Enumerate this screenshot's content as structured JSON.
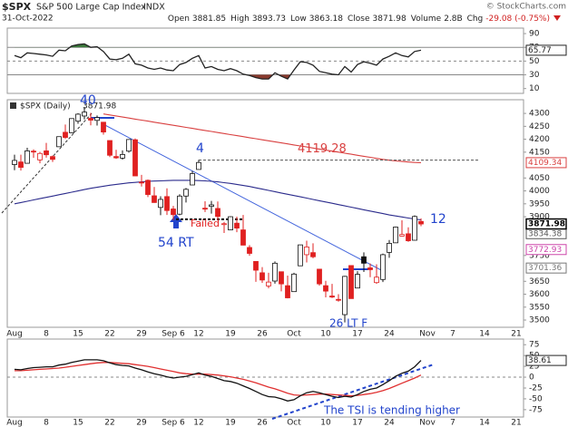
{
  "header": {
    "symbol": "$SPX",
    "name": "S&P 500 Large Cap Index",
    "exchange": "INDX",
    "date": "31-Oct-2022",
    "copyright": "© StockCharts.com",
    "stats": [
      {
        "label": "Open",
        "value": 3881.85
      },
      {
        "label": "High",
        "value": 3893.73
      },
      {
        "label": "Low",
        "value": 3863.18
      },
      {
        "label": "Close",
        "value": 3871.98
      },
      {
        "label": "Volume",
        "value": "2.8B"
      },
      {
        "label": "Chg",
        "value": "-29.08 (-0.75%)"
      }
    ]
  },
  "chart_data": [
    {
      "type": "line",
      "ylim": [
        3,
        98
      ],
      "yticks": [
        90,
        70,
        50,
        30,
        10
      ],
      "reference_lines": [
        {
          "value": 70,
          "style": "solid"
        },
        {
          "value": 50,
          "style": "dashed"
        },
        {
          "value": 30,
          "style": "solid"
        }
      ],
      "overbought": 70,
      "oversold": 30,
      "overbought_color": "#3d7a3d",
      "oversold_color": "#8a3b2e",
      "series": [
        {
          "color": "#222222",
          "values": [
            58,
            55,
            62,
            61,
            60,
            59,
            57,
            66,
            65,
            72,
            74,
            75,
            70,
            71,
            64,
            53,
            52,
            54,
            60,
            46,
            44,
            40,
            38,
            40,
            37,
            36,
            45,
            48,
            54,
            58,
            40,
            42,
            38,
            36,
            39,
            36,
            31,
            29,
            26,
            24,
            24,
            33,
            28,
            24,
            37,
            49,
            48,
            44,
            35,
            33,
            31,
            30,
            42,
            34,
            45,
            49,
            47,
            44,
            53,
            57,
            62,
            58,
            56,
            64,
            65.77
          ]
        }
      ]
    },
    {
      "type": "candlestick",
      "legend": "$SPX (Daily)",
      "ylim": [
        3472,
        4353
      ],
      "yticks": [
        4300,
        4250,
        4200,
        4150,
        4050,
        4000,
        3950,
        3900,
        3750,
        3650,
        3600,
        3550,
        3500
      ],
      "categories": [
        "Aug",
        null,
        null,
        null,
        null,
        "8",
        null,
        null,
        null,
        null,
        "15",
        null,
        null,
        null,
        null,
        "22",
        null,
        null,
        null,
        null,
        "29",
        null,
        null,
        null,
        null,
        "Sep 6",
        null,
        null,
        null,
        "12",
        null,
        null,
        null,
        null,
        "19",
        null,
        null,
        null,
        null,
        "26",
        null,
        null,
        null,
        null,
        "Oct",
        null,
        null,
        null,
        null,
        "10",
        null,
        null,
        null,
        null,
        "17",
        null,
        null,
        null,
        null,
        "24",
        null,
        null,
        null,
        null,
        null,
        "Nov",
        null,
        null,
        null,
        "7",
        null,
        null,
        null,
        null,
        "14",
        null,
        null,
        null,
        null,
        "21",
        null
      ],
      "open": [
        4102,
        4112,
        4107,
        4154,
        4120,
        4155,
        4133,
        4171,
        4227,
        4225,
        4270,
        4290,
        4281,
        4273,
        4266,
        4195,
        4133,
        4127,
        4154,
        4198,
        4034,
        4041,
        3981,
        3936,
        3978,
        3930,
        3910,
        3980,
        4023,
        4083,
        3933,
        3940,
        3932,
        3871,
        3849,
        3875,
        3849,
        3781,
        3727,
        3683,
        3632,
        3651,
        3687,
        3633,
        3610,
        3710,
        3753,
        3761,
        3697,
        3633,
        3593,
        3580,
        3521,
        3711,
        3624,
        3745,
        3702,
        3645,
        3657,
        3762,
        3799,
        3825,
        3834,
        3809,
        3881.85,
        null,
        null,
        null,
        null,
        null,
        null,
        null,
        null,
        null,
        null,
        null,
        null,
        null,
        null,
        null,
        null
      ],
      "high": [
        4140,
        4140,
        4167,
        4161,
        4151,
        4186,
        4137,
        4211,
        4257,
        4280,
        4301,
        4325,
        4302,
        4292,
        4266,
        4195,
        4159,
        4157,
        4200,
        4203,
        4062,
        4044,
        4015,
        3979,
        4010,
        3942,
        3987,
        4011,
        4077,
        4120,
        3960,
        3961,
        3959,
        3880,
        3902,
        3900,
        3907,
        3790,
        3727,
        3705,
        3683,
        3727,
        3687,
        3672,
        3683,
        3791,
        3807,
        3797,
        3697,
        3652,
        3640,
        3600,
        3671,
        3712,
        3689,
        3762,
        3719,
        3716,
        3757,
        3810,
        3862,
        3886,
        3859,
        3905,
        3893.73,
        null,
        null,
        null,
        null,
        null,
        null,
        null,
        null,
        null,
        null,
        null,
        null,
        null,
        null,
        null,
        null
      ],
      "low": [
        4080,
        4079,
        4107,
        4128,
        4107,
        4129,
        4112,
        4171,
        4201,
        4225,
        4260,
        4277,
        4254,
        4253,
        4218,
        4131,
        4124,
        4121,
        4148,
        4058,
        4017,
        3976,
        3954,
        3906,
        3907,
        3886,
        3906,
        3955,
        4023,
        4083,
        3918,
        3912,
        3888,
        3837,
        3849,
        3840,
        3789,
        3749,
        3648,
        3644,
        3623,
        3641,
        3611,
        3584,
        3610,
        3710,
        3723,
        3739,
        3633,
        3588,
        3585,
        3571,
        3491,
        3583,
        3624,
        3686,
        3666,
        3640,
        3647,
        3741,
        3799,
        3824,
        3803,
        3808,
        3863.18,
        null,
        null,
        null,
        null,
        null,
        null,
        null,
        null,
        null,
        null,
        null,
        null,
        null,
        null,
        null,
        null
      ],
      "close": [
        4118,
        4091,
        4155,
        4152,
        4145,
        4140,
        4122,
        4210,
        4207,
        4280,
        4297,
        4305,
        4274,
        4284,
        4228,
        4138,
        4128,
        4141,
        4199,
        4058,
        4031,
        3986,
        3955,
        3967,
        3924,
        3908,
        3980,
        4006,
        4067,
        4110,
        3932,
        3946,
        3901,
        3873,
        3900,
        3856,
        3790,
        3758,
        3693,
        3655,
        3647,
        3720,
        3640,
        3586,
        3678,
        3791,
        3783,
        3745,
        3640,
        3612,
        3589,
        3577,
        3669,
        3583,
        3677,
        3720,
        3695,
        3666,
        3753,
        3797,
        3860,
        3831,
        3807,
        3901,
        3871.98,
        null,
        null,
        null,
        null,
        null,
        null,
        null,
        null,
        null,
        null,
        null,
        null,
        null,
        null,
        null,
        null
      ],
      "up_color": "#111111",
      "down_color": "#e02020",
      "series": [
        {
          "color": "#d94040",
          "values": [
            null,
            null,
            null,
            null,
            null,
            null,
            null,
            null,
            null,
            null,
            null,
            null,
            null,
            null,
            4298,
            4294,
            4290,
            4286,
            4282,
            4278,
            4274,
            4270,
            4266,
            4262,
            4258,
            4254,
            4250,
            4246,
            4242,
            4238,
            4234,
            4230,
            4226,
            4222,
            4218,
            4214,
            4210,
            4206,
            4202,
            4198,
            4194,
            4190,
            4186,
            4182,
            4178,
            4174,
            4170,
            4166,
            4162,
            4158,
            4154,
            4150,
            4146,
            4142,
            4138,
            4134,
            4130,
            4126,
            4122,
            4119,
            4116,
            4114,
            4112,
            4110,
            4109.34,
            null,
            null,
            null,
            null,
            null,
            null,
            null,
            null,
            null,
            null,
            null,
            null,
            null,
            null,
            null,
            null
          ]
        },
        {
          "color": "#2b2b8c",
          "values": [
            3950,
            3955,
            3960,
            3965,
            3970,
            3975,
            3980,
            3985,
            3990,
            3995,
            4000,
            4005,
            4010,
            4014,
            4018,
            4022,
            4025,
            4028,
            4031,
            4033,
            4035,
            4037,
            4038,
            4039,
            4040,
            4041,
            4041,
            4041,
            4041,
            4040,
            4039,
            4037,
            4035,
            4032,
            4029,
            4025,
            4021,
            4017,
            4012,
            4007,
            4002,
            3997,
            3992,
            3987,
            3982,
            3977,
            3972,
            3967,
            3962,
            3957,
            3952,
            3947,
            3942,
            3937,
            3932,
            3927,
            3922,
            3917,
            3912,
            3907,
            3903,
            3899,
            3895,
            3891,
            3888,
            null,
            null,
            null,
            null,
            null,
            null,
            null,
            null,
            null,
            null,
            null,
            null,
            null,
            null,
            null,
            null
          ]
        }
      ],
      "resistance": {
        "value": 4119.28,
        "color": "#d94040"
      },
      "price_tags": [
        {
          "value": 4109.34,
          "color": "#d94040"
        },
        {
          "value": 3834.38,
          "color": "#555555"
        },
        {
          "value": 3772.93,
          "color": "#cc44aa"
        },
        {
          "value": 3701.36,
          "color": "#777777"
        }
      ],
      "annotations": [
        {
          "text": "40"
        },
        {
          "text": "4"
        },
        {
          "text": "Failed",
          "value": 3890
        },
        {
          "text": "54 RT"
        },
        {
          "text": "26 LT F"
        },
        {
          "text": "12"
        }
      ]
    },
    {
      "type": "line",
      "ylim": [
        -92,
        88
      ],
      "yticks": [
        75,
        50,
        25,
        0,
        -25,
        -50,
        -75
      ],
      "reference_lines": [
        {
          "value": 0,
          "style": "dashed"
        }
      ],
      "annotations": [
        {
          "text": "The TSI is tending higher"
        }
      ],
      "series": [
        {
          "color": "#111111",
          "values": [
            18,
            17,
            20,
            22,
            23,
            24,
            24,
            28,
            30,
            34,
            37,
            40,
            40,
            40,
            38,
            33,
            29,
            27,
            26,
            21,
            17,
            12,
            8,
            5,
            1,
            -2,
            0,
            2,
            6,
            10,
            5,
            2,
            -3,
            -8,
            -10,
            -14,
            -20,
            -26,
            -33,
            -40,
            -45,
            -46,
            -50,
            -55,
            -52,
            -43,
            -36,
            -33,
            -36,
            -40,
            -44,
            -47,
            -44,
            -46,
            -40,
            -33,
            -28,
            -25,
            -17,
            -8,
            2,
            9,
            14,
            24,
            38.61
          ]
        },
        {
          "color": "#e03030",
          "values": [
            15,
            15,
            16,
            17,
            18,
            19,
            20,
            21,
            23,
            25,
            27,
            29,
            31,
            33,
            34,
            34,
            33,
            32,
            31,
            29,
            27,
            25,
            22,
            19,
            16,
            13,
            10,
            8,
            7,
            7,
            7,
            6,
            5,
            3,
            1,
            -2,
            -5,
            -9,
            -13,
            -18,
            -23,
            -27,
            -32,
            -37,
            -41,
            -42,
            -41,
            -40,
            -39,
            -39,
            -40,
            -41,
            -42,
            -43,
            -42,
            -40,
            -38,
            -35,
            -31,
            -26,
            -20,
            -14,
            -8,
            -2,
            5
          ]
        }
      ]
    }
  ]
}
